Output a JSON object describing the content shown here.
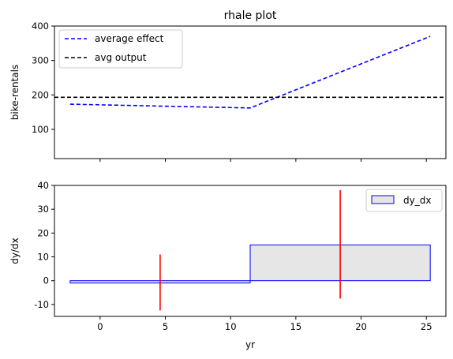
{
  "chart_data": [
    {
      "type": "line",
      "title": "rhale plot",
      "xlabel": "",
      "ylabel": "bike-rentals",
      "xlim": [
        -3.5,
        26.5
      ],
      "ylim": [
        15,
        400
      ],
      "yticks": [
        100,
        200,
        300,
        400
      ],
      "xticks": [
        0,
        5,
        10,
        15,
        20,
        25
      ],
      "legend_position": "top-left",
      "series": [
        {
          "name": "average effect",
          "color": "#0000ff",
          "style": "dashed",
          "points": [
            [
              -2.3,
              173
            ],
            [
              11.5,
              162
            ],
            [
              25.3,
              370
            ]
          ]
        },
        {
          "name": "avg output",
          "color": "#000000",
          "style": "dashed",
          "hline": 193
        }
      ]
    },
    {
      "type": "bar",
      "title": "",
      "xlabel": "yr",
      "ylabel": "dy/dx",
      "xlim": [
        -3.5,
        26.5
      ],
      "ylim": [
        -15,
        40
      ],
      "yticks": [
        -10,
        0,
        10,
        20,
        30,
        40
      ],
      "xticks": [
        0,
        5,
        10,
        15,
        20,
        25
      ],
      "legend_position": "top-right",
      "legend_label": "dy_dx",
      "bars": [
        {
          "x0": -2.3,
          "x1": 11.5,
          "value": -1,
          "center": 4.6,
          "err_low": -12.5,
          "err_high": 11
        },
        {
          "x0": 11.5,
          "x1": 25.3,
          "value": 15,
          "center": 18.4,
          "err_low": -7.5,
          "err_high": 38
        }
      ],
      "bar_fill": "#e6e6e6",
      "bar_edge": "#0000ff",
      "err_color": "#ff0000"
    }
  ]
}
